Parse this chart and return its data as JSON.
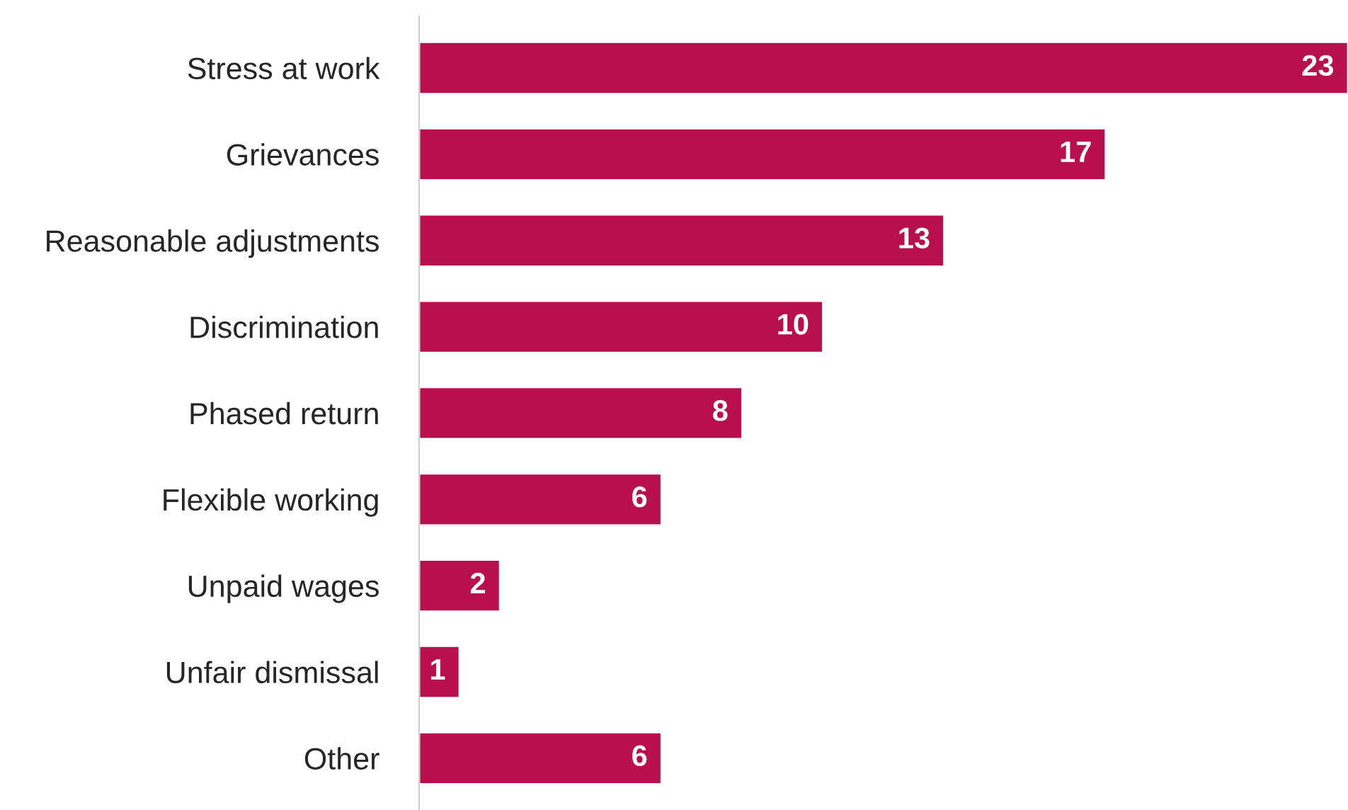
{
  "chart_data": {
    "type": "bar",
    "orientation": "horizontal",
    "categories": [
      "Stress at work",
      "Grievances",
      "Reasonable adjustments",
      "Discrimination",
      "Phased return",
      "Flexible working",
      "Unpaid wages",
      "Unfair dismissal",
      "Other"
    ],
    "values": [
      23,
      17,
      13,
      10,
      8,
      6,
      2,
      1,
      6
    ],
    "color": "#b80f4e",
    "data_labels": true,
    "grid": false,
    "legend": false
  }
}
